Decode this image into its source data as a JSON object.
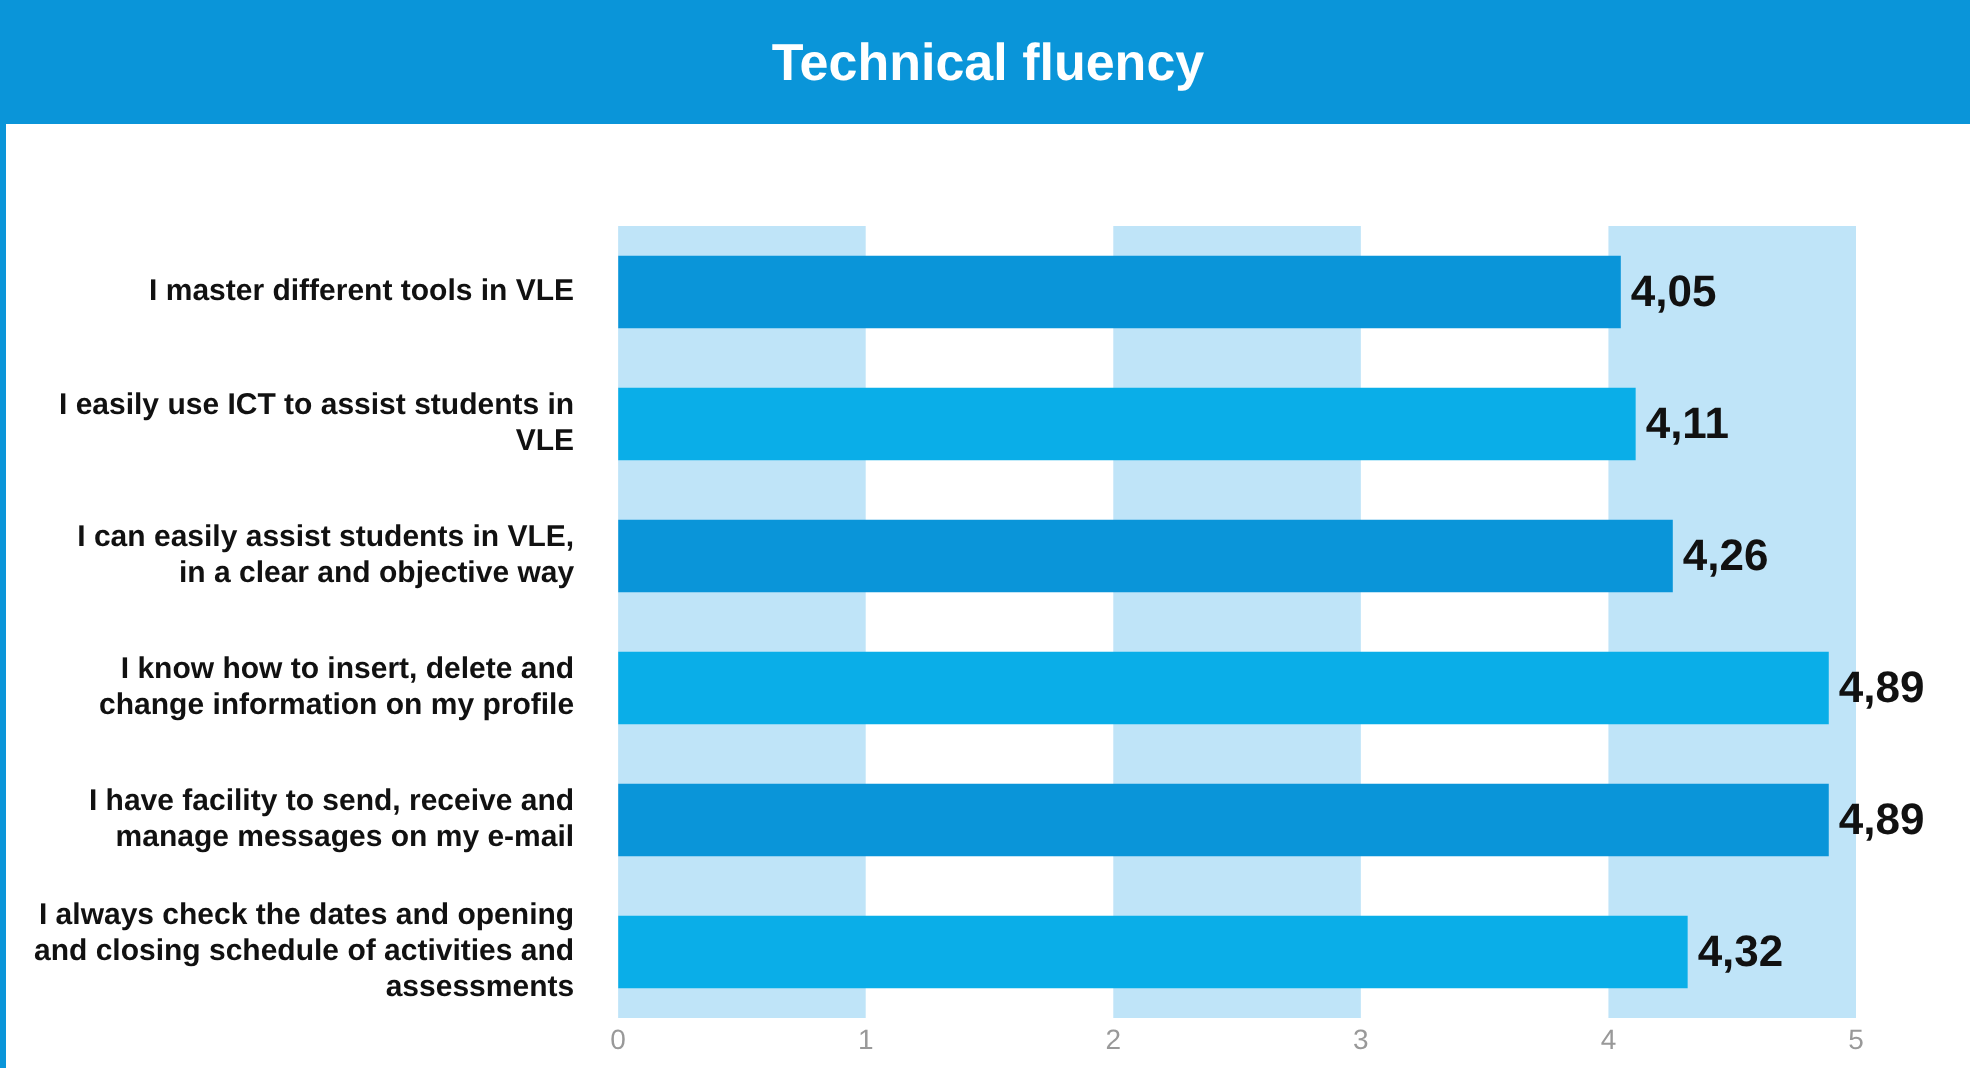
{
  "chart_data": {
    "type": "bar",
    "orientation": "horizontal",
    "title": "Technical fluency",
    "categories": [
      "I master different tools in VLE",
      "I easily use ICT to assist students in VLE",
      "I can easily assist students in VLE, in a clear and objective way",
      "I know how to insert, delete and change information on my profile",
      "I have facility to send, receive and manage messages on my e-mail",
      "I always check the dates and opening and closing schedule of activities and assessments"
    ],
    "values": [
      4.05,
      4.11,
      4.26,
      4.89,
      4.89,
      4.32
    ],
    "colors": [
      "#0a95d9",
      "#0aaee8",
      "#0a95d9",
      "#0aaee8",
      "#0a95d9",
      "#0aaee8"
    ],
    "value_labels": [
      "4,05",
      "4,11",
      "4,26",
      "4,89",
      "4,89",
      "4,32"
    ],
    "xlim": [
      0,
      5
    ],
    "xticks": [
      0,
      1,
      2,
      3,
      4,
      5
    ],
    "grid": false,
    "legend": false,
    "bands": [
      {
        "axis": "x",
        "from": 0,
        "to": 1,
        "color": "#bfe4f8"
      },
      {
        "axis": "x",
        "from": 2,
        "to": 3,
        "color": "#bfe4f8"
      },
      {
        "axis": "x",
        "from": 4,
        "to": 5,
        "color": "#bfe4f8"
      }
    ]
  }
}
